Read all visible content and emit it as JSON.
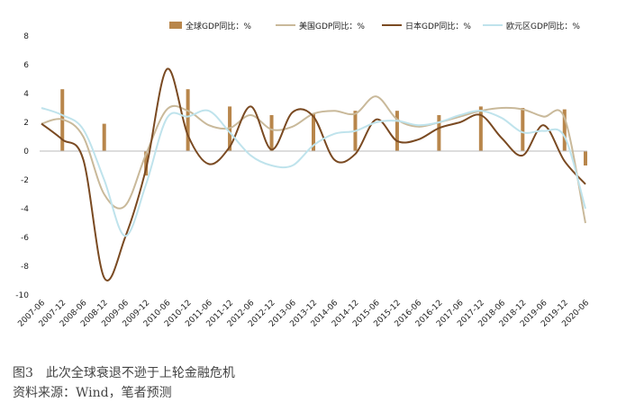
{
  "caption": {
    "title": "图3　此次全球衰退不逊于上轮金融危机",
    "source": "资料来源：Wind，笔者预测"
  },
  "chart_data": {
    "type": "line",
    "legend_placement": "top",
    "ylim": [
      -10,
      8
    ],
    "yticks": [
      -10,
      -8,
      -6,
      -4,
      -2,
      0,
      2,
      4,
      6,
      8
    ],
    "x_tick_labels": [
      "2007-06",
      "2007-12",
      "2008-06",
      "2008-12",
      "2009-06",
      "2009-12",
      "2010-06",
      "2010-12",
      "2011-06",
      "2011-12",
      "2012-06",
      "2012-12",
      "2013-06",
      "2013-12",
      "2014-06",
      "2014-12",
      "2015-06",
      "2015-12",
      "2016-06",
      "2016-12",
      "2017-06",
      "2017-12",
      "2018-06",
      "2018-12",
      "2019-06",
      "2019-12",
      "2020-06"
    ],
    "series": [
      {
        "name": "全球GDP同比：%",
        "type": "bar",
        "color": "#b8864b",
        "values": [
          null,
          4.3,
          null,
          1.9,
          null,
          -1.7,
          null,
          4.3,
          null,
          3.1,
          null,
          2.5,
          null,
          2.6,
          null,
          2.8,
          null,
          2.8,
          null,
          2.5,
          null,
          3.1,
          null,
          3.0,
          null,
          2.9,
          -1.0
        ]
      },
      {
        "name": "美国GDP同比：%",
        "type": "line",
        "color": "#c9b99a",
        "values": [
          1.9,
          2.2,
          1.0,
          -3.0,
          -3.8,
          -0.2,
          2.9,
          2.8,
          1.8,
          1.6,
          2.5,
          1.5,
          1.7,
          2.6,
          2.8,
          2.6,
          3.8,
          2.2,
          1.7,
          2.0,
          2.4,
          2.8,
          3.0,
          2.9,
          2.4,
          2.3,
          -5.0
        ]
      },
      {
        "name": "日本GDP同比：%",
        "type": "line",
        "color": "#7a4a22",
        "values": [
          1.9,
          0.8,
          -0.6,
          -8.8,
          -6.0,
          -1.2,
          5.7,
          1.1,
          -0.9,
          0.3,
          3.1,
          0.1,
          2.7,
          2.4,
          -0.6,
          -0.2,
          2.2,
          0.7,
          0.8,
          1.6,
          2.0,
          2.5,
          0.9,
          -0.3,
          1.8,
          -0.7,
          -2.3
        ]
      },
      {
        "name": "欧元区GDP同比：%",
        "type": "line",
        "color": "#bfe3ec",
        "values": [
          3.0,
          2.5,
          1.5,
          -2.0,
          -5.9,
          -2.3,
          2.3,
          2.4,
          2.8,
          1.3,
          -0.3,
          -1.0,
          -1.0,
          0.4,
          1.2,
          1.4,
          2.0,
          2.1,
          1.8,
          2.0,
          2.5,
          2.8,
          2.3,
          1.3,
          1.4,
          1.0,
          -4.0
        ]
      }
    ]
  }
}
